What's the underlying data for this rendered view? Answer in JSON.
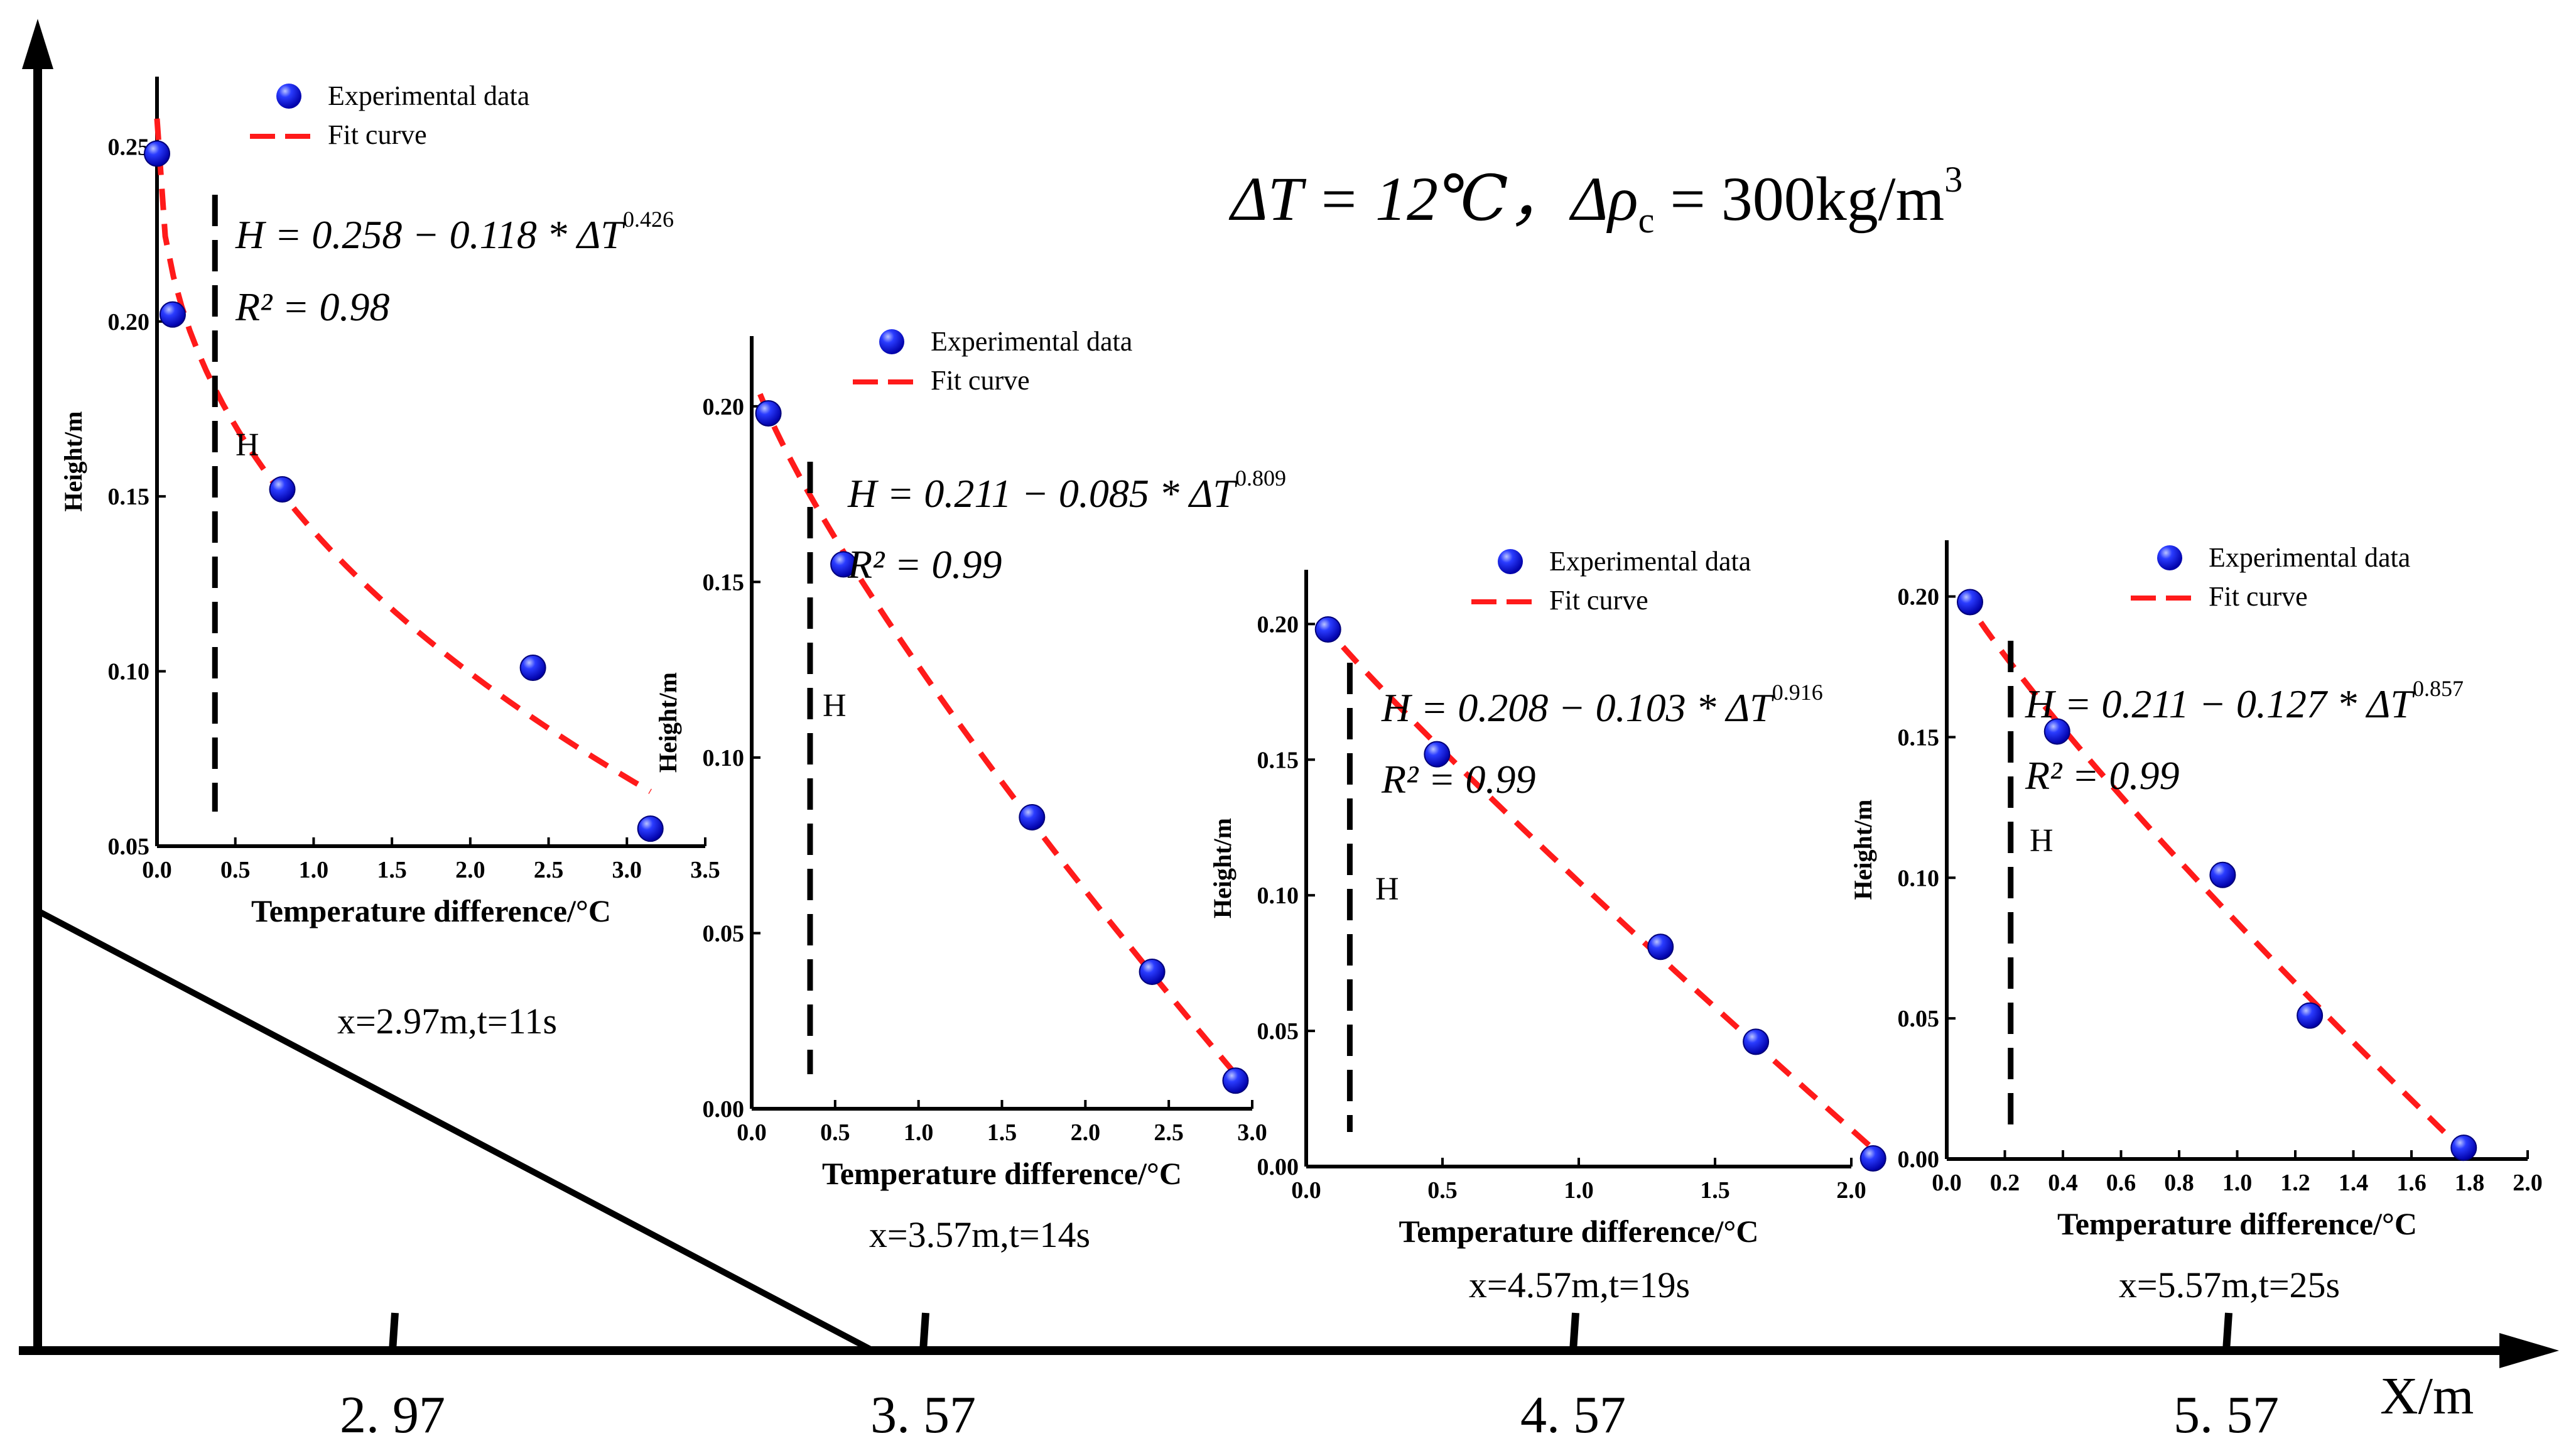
{
  "header": {
    "condition_dT": "ΔT = 12℃，",
    "condition_drho": "Δρ",
    "condition_drho_sub": "c",
    "condition_drho_val": " = 300kg/m",
    "condition_drho_sup": "3"
  },
  "main_axis": {
    "xlabel": "X/m",
    "ticks": [
      "2. 97",
      "3. 57",
      "4. 57",
      "5. 57"
    ]
  },
  "chart_data": [
    {
      "type": "scatter",
      "caption": "x=2.97m,t=11s",
      "xlabel": "Temperature difference/°C",
      "ylabel": "Height/m",
      "xlim": [
        0,
        3.5
      ],
      "ylim": [
        0.05,
        0.27
      ],
      "xticks": [
        0,
        0.5,
        1.0,
        1.5,
        2.0,
        2.5,
        3.0,
        3.5
      ],
      "xtick_labels": [
        "0.0",
        "0.5",
        "1.0",
        "1.5",
        "2.0",
        "2.5",
        "3.0",
        "3.5"
      ],
      "yticks": [
        0.05,
        0.1,
        0.15,
        0.2,
        0.25
      ],
      "ytick_labels": [
        "0.05",
        "0.10",
        "0.15",
        "0.20",
        "0.25"
      ],
      "legend": [
        "Experimental data",
        "Fit curve"
      ],
      "series": [
        {
          "name": "Experimental data",
          "x": [
            0.0,
            0.1,
            0.8,
            2.4,
            3.15
          ],
          "y": [
            0.248,
            0.202,
            0.152,
            0.101,
            0.055
          ]
        }
      ],
      "fit": {
        "a": 0.258,
        "b": 0.118,
        "p": 0.426,
        "x_range": [
          0.0,
          3.15
        ]
      },
      "equation": "H = 0.258 − 0.118 * ΔT",
      "equation_exp": "0.426",
      "r2": "R² = 0.98",
      "marker_label": "H",
      "h_marker_x": 0.37
    },
    {
      "type": "scatter",
      "caption": "x=3.57m,t=14s",
      "xlabel": "Temperature difference/°C",
      "ylabel": "Height/m",
      "xlim": [
        0,
        3.0
      ],
      "ylim": [
        0,
        0.22
      ],
      "xticks": [
        0,
        0.5,
        1.0,
        1.5,
        2.0,
        2.5,
        3.0
      ],
      "xtick_labels": [
        "0.0",
        "0.5",
        "1.0",
        "1.5",
        "2.0",
        "2.5",
        "3.0"
      ],
      "yticks": [
        0,
        0.05,
        0.1,
        0.15,
        0.2
      ],
      "ytick_labels": [
        "0.00",
        "0.05",
        "0.10",
        "0.15",
        "0.20"
      ],
      "legend": [
        "Experimental data",
        "Fit curve"
      ],
      "series": [
        {
          "name": "Experimental data",
          "x": [
            0.1,
            0.55,
            1.68,
            2.4,
            2.9
          ],
          "y": [
            0.198,
            0.155,
            0.083,
            0.039,
            0.008
          ]
        }
      ],
      "fit": {
        "a": 0.211,
        "b": 0.085,
        "p": 0.809,
        "x_range": [
          0.05,
          2.9
        ]
      },
      "equation": "H = 0.211 − 0.085 * ΔT",
      "equation_exp": "0.809",
      "r2": "R² = 0.99",
      "marker_label": "H",
      "h_marker_x": 0.35
    },
    {
      "type": "scatter",
      "caption": "x=4.57m,t=19s",
      "xlabel": "Temperature difference/°C",
      "ylabel": "Height/m",
      "xlim": [
        0,
        2.0
      ],
      "ylim": [
        0,
        0.22
      ],
      "xticks": [
        0,
        0.5,
        1.0,
        1.5,
        2.0
      ],
      "xtick_labels": [
        "0.0",
        "0.5",
        "1.0",
        "1.5",
        "2.0"
      ],
      "yticks": [
        0,
        0.05,
        0.1,
        0.15,
        0.2
      ],
      "ytick_labels": [
        "0.00",
        "0.05",
        "0.10",
        "0.15",
        "0.20"
      ],
      "legend": [
        "Experimental data",
        "Fit curve"
      ],
      "series": [
        {
          "name": "Experimental data",
          "x": [
            0.08,
            0.48,
            1.3,
            1.65,
            2.08
          ],
          "y": [
            0.198,
            0.152,
            0.081,
            0.046,
            0.003
          ]
        }
      ],
      "fit": {
        "a": 0.208,
        "b": 0.103,
        "p": 0.916,
        "x_range": [
          0.05,
          2.08
        ]
      },
      "equation": "H = 0.208 − 0.103 * ΔT",
      "equation_exp": "0.916",
      "r2": "R² = 0.99",
      "marker_label": "H",
      "h_marker_x": 0.16
    },
    {
      "type": "scatter",
      "caption": "x=5.57m,t=25s",
      "xlabel": "Temperature difference/°C",
      "ylabel": "Height/m",
      "xlim": [
        0,
        2.0
      ],
      "ylim": [
        0,
        0.22
      ],
      "xticks": [
        0,
        0.2,
        0.4,
        0.6,
        0.8,
        1.0,
        1.2,
        1.4,
        1.6,
        1.8,
        2.0
      ],
      "xtick_labels": [
        "0.0",
        "0.2",
        "0.4",
        "0.6",
        "0.8",
        "1.0",
        "1.2",
        "1.4",
        "1.6",
        "1.8",
        "2.0"
      ],
      "yticks": [
        0,
        0.05,
        0.1,
        0.15,
        0.2
      ],
      "ytick_labels": [
        "0.00",
        "0.05",
        "0.10",
        "0.15",
        "0.20"
      ],
      "legend": [
        "Experimental data",
        "Fit curve"
      ],
      "series": [
        {
          "name": "Experimental data",
          "x": [
            0.08,
            0.38,
            0.95,
            1.25,
            1.78
          ],
          "y": [
            0.198,
            0.152,
            0.101,
            0.051,
            0.004
          ]
        }
      ],
      "fit": {
        "a": 0.211,
        "b": 0.127,
        "p": 0.857,
        "x_range": [
          0.05,
          1.78
        ]
      },
      "equation": "H = 0.211 − 0.127 * ΔT",
      "equation_exp": "0.857",
      "r2": "R² = 0.99",
      "marker_label": "H",
      "h_marker_x": 0.22
    }
  ]
}
